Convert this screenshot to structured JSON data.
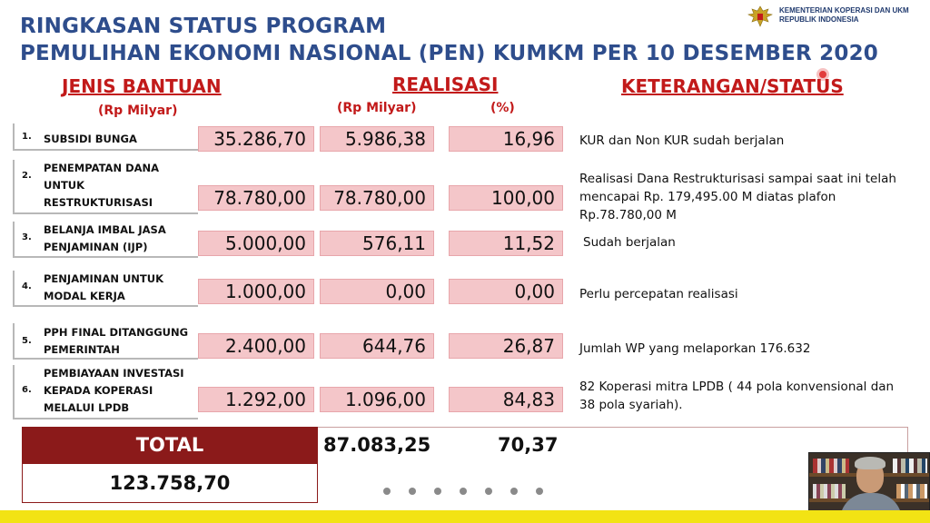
{
  "header": {
    "title_line1": "RINGKASAN STATUS PROGRAM",
    "title_line2": "PEMULIHAN EKONOMI NASIONAL (PEN) KUMKM PER 10 DESEMBER 2020",
    "ministry_line1": "KEMENTERIAN KOPERASI DAN UKM",
    "ministry_line2": "REPUBLIK INDONESIA",
    "logo_icon": "garuda-emblem-icon"
  },
  "columns": {
    "jenis_bantuan": "JENIS BANTUAN",
    "jenis_unit": "(Rp Milyar)",
    "realisasi": "REALISASI",
    "realisasi_unit": "(Rp Milyar)",
    "percent_unit": "(%)",
    "keterangan": "KETERANGAN/STATUS"
  },
  "rows": [
    {
      "no": "1.",
      "label_lines": [
        "SUBSIDI BUNGA"
      ],
      "anggaran": "35.286,70",
      "realisasi": "5.986,38",
      "persen": "16,96",
      "keterangan_lines": [
        "KUR dan Non KUR sudah berjalan"
      ]
    },
    {
      "no": "2.",
      "label_lines": [
        "PENEMPATAN DANA",
        "UNTUK",
        "RESTRUKTURISASI"
      ],
      "anggaran": "78.780,00",
      "realisasi": "78.780,00",
      "persen": "100,00",
      "keterangan_lines": [
        "Realisasi Dana Restrukturisasi sampai saat ini telah",
        "mencapai Rp. 179,495.00 M diatas plafon",
        "Rp.78.780,00 M"
      ]
    },
    {
      "no": "3.",
      "label_lines": [
        "BELANJA IMBAL JASA",
        "PENJAMINAN (IJP)"
      ],
      "anggaran": "5.000,00",
      "realisasi": "576,11",
      "persen": "11,52",
      "keterangan_lines": [
        "Sudah berjalan"
      ]
    },
    {
      "no": "4.",
      "label_lines": [
        "PENJAMINAN UNTUK",
        "MODAL KERJA"
      ],
      "anggaran": "1.000,00",
      "realisasi": "0,00",
      "persen": "0,00",
      "keterangan_lines": [
        "Perlu percepatan realisasi"
      ]
    },
    {
      "no": "5.",
      "label_lines": [
        "PPh FINAL DITANGGUNG",
        "PEMERINTAH"
      ],
      "anggaran": "2.400,00",
      "realisasi": "644,76",
      "persen": "26,87",
      "keterangan_lines": [
        "Jumlah WP yang melaporkan 176.632"
      ]
    },
    {
      "no": "6.",
      "label_lines": [
        "PEMBIAYAAN INVESTASI",
        "KEPADA KOPERASI",
        "MELALUI LPDB"
      ],
      "anggaran": "1.292,00",
      "realisasi": "1.096,00",
      "persen": "84,83",
      "keterangan_lines": [
        "82 Koperasi mitra LPDB ( 44 pola konvensional dan",
        "38 pola syariah)."
      ]
    }
  ],
  "total": {
    "label": "TOTAL",
    "realisasi": "87.083,25",
    "persen": "70,37",
    "anggaran": "123.758,70"
  },
  "slide_dots": 7,
  "colors": {
    "title": "#2e4d8c",
    "header_red": "#c21a1a",
    "value_box": "#f4c6c9",
    "total_band": "#8b1a1a",
    "footer_bar": "#f2e314"
  }
}
